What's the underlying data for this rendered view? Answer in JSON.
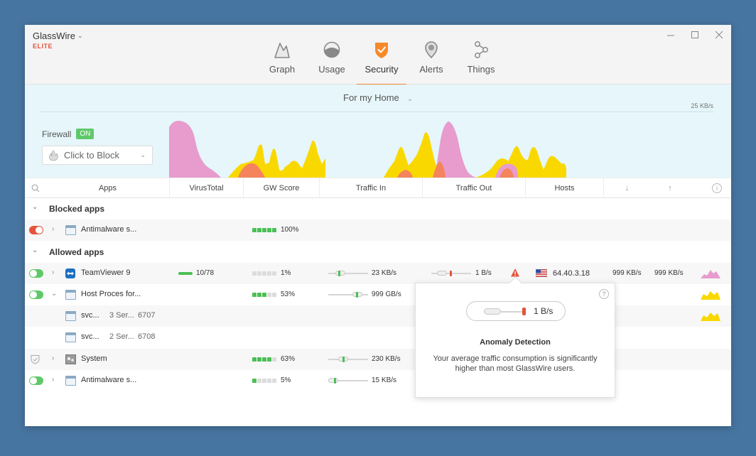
{
  "app": {
    "name": "GlassWire",
    "edition": "ELITE"
  },
  "nav": {
    "tabs": [
      {
        "label": "Graph",
        "icon": "graph-icon"
      },
      {
        "label": "Usage",
        "icon": "usage-icon"
      },
      {
        "label": "Security",
        "icon": "shield-icon",
        "active": true
      },
      {
        "label": "Alerts",
        "icon": "alerts-icon"
      },
      {
        "label": "Things",
        "icon": "things-icon"
      }
    ]
  },
  "profile": {
    "label": "For my Home"
  },
  "graph": {
    "scale_label": "25 KB/s",
    "colors": {
      "pink": "#e79ccd",
      "yellow": "#f9d800",
      "orange": "#f5845c"
    }
  },
  "firewall": {
    "label": "Firewall",
    "state": "ON",
    "dropdown_label": "Click to Block"
  },
  "columns": {
    "apps": "Apps",
    "virustotal": "VirusTotal",
    "gwscore": "GW Score",
    "traffic_in": "Traffic In",
    "traffic_out": "Traffic Out",
    "hosts": "Hosts",
    "down": "↓",
    "up": "↑",
    "info": "i"
  },
  "sections": {
    "blocked": "Blocked apps",
    "allowed": "Allowed apps"
  },
  "rows": {
    "blocked_antimalware": {
      "name": "Antimalware s...",
      "score": "100%",
      "score_level": 5
    },
    "teamviewer": {
      "name": "TeamViewer 9",
      "virustotal": "10/78",
      "score": "1%",
      "score_level": 0,
      "traffic_in": "23 KB/s",
      "traffic_out": "1 B/s",
      "host": "64.40.3.18",
      "down": "999 KB/s",
      "up": "999 KB/s"
    },
    "host_process": {
      "name": "Host Proces for...",
      "score": "53%",
      "score_level": 3,
      "traffic_in": "999 GB/s"
    },
    "svc1": {
      "name": "svc...",
      "services": "3 Ser...",
      "pid": "6707"
    },
    "svc2": {
      "name": "svc...",
      "services": "2 Ser...",
      "pid": "6708"
    },
    "system": {
      "name": "System",
      "score": "63%",
      "score_level": 4,
      "traffic_in": "230 KB/s"
    },
    "allowed_antimalware": {
      "name": "Antimalware s...",
      "score": "5%",
      "score_level": 1,
      "traffic_in": "15 KB/s"
    }
  },
  "popover": {
    "rate": "1 B/s",
    "title": "Anomaly Detection",
    "body": "Your average traffic consumption is significantly higher than most GlassWire users."
  },
  "colors": {
    "accent": "#f0822f",
    "green": "#5fc96a",
    "red": "#e4543b",
    "graph_bg": "#e6f6fa"
  }
}
